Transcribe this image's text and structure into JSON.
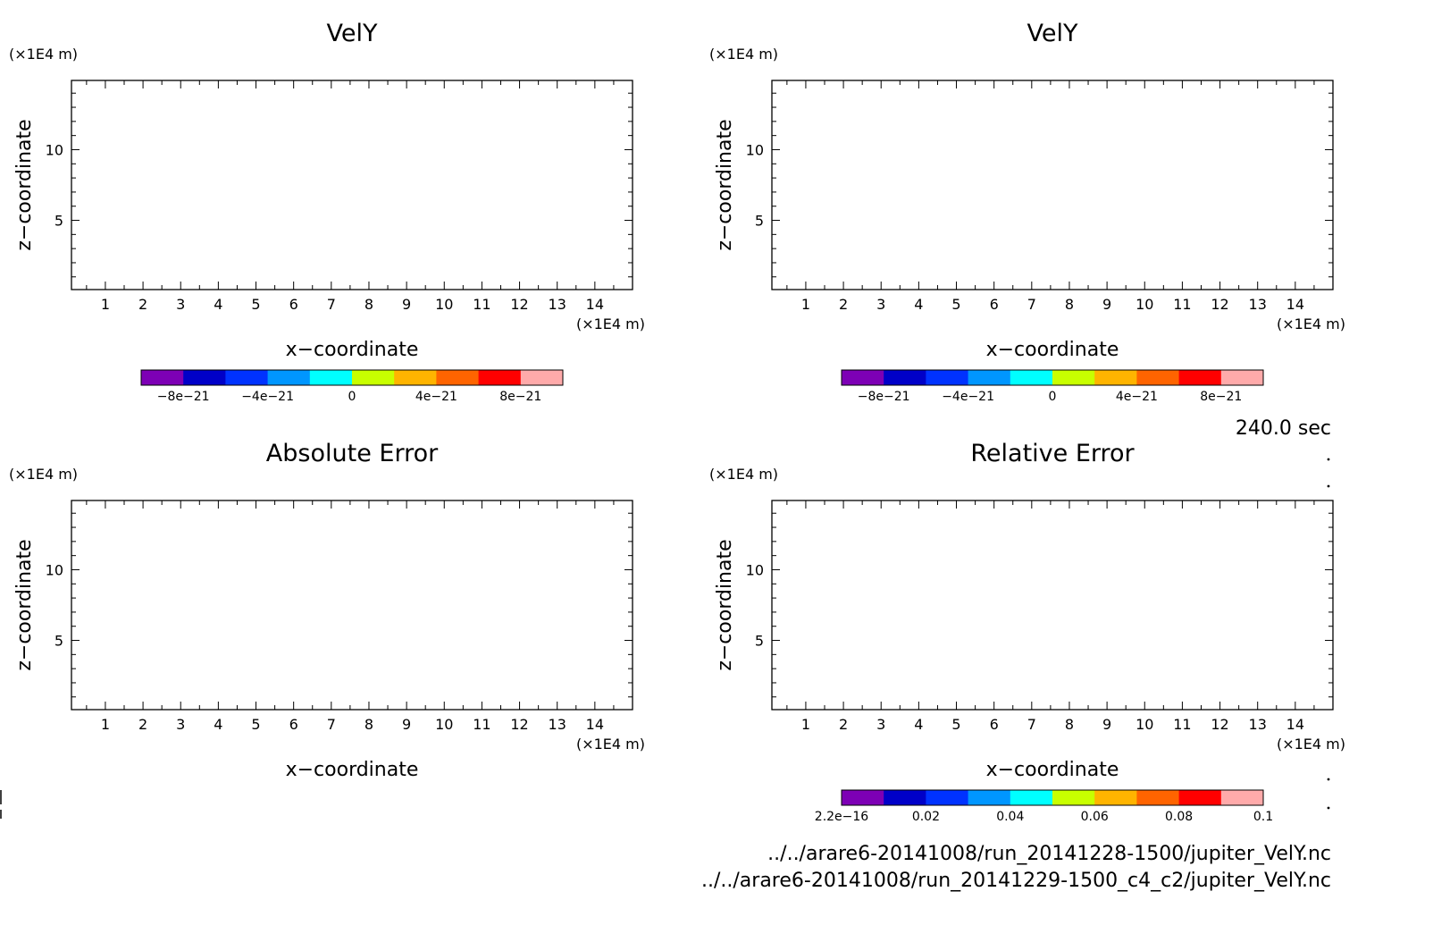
{
  "footer": {
    "time": "240.0 sec",
    "file1": "../../arare6-20141008/run_20141228-1500/jupiter_VelY.nc",
    "file2": "../../arare6-20141008/run_20141229-1500_c4_c2/jupiter_VelY.nc"
  },
  "colorbar_colors": [
    "#7d00b5",
    "#0000c8",
    "#0032ff",
    "#0096ff",
    "#00ffff",
    "#c8ff00",
    "#ffb400",
    "#ff6400",
    "#ff0000",
    "#ffaaaa"
  ],
  "chart_data": [
    {
      "type": "heatmap",
      "title": "VelY",
      "xlabel": "x−coordinate",
      "ylabel": "z−coordinate",
      "x_unit": "(×1E4 m)",
      "y_unit": "(×1E4 m)",
      "xlim": [
        0.1,
        15.0
      ],
      "ylim": [
        0.1,
        14.9
      ],
      "x_ticks": [
        "1",
        "2",
        "3",
        "4",
        "5",
        "6",
        "7",
        "8",
        "9",
        "10",
        "11",
        "12",
        "13",
        "14"
      ],
      "y_ticks": [
        "5",
        "10"
      ],
      "grid": false,
      "colorbar": [
        "−8e−21",
        "−4e−21",
        "0",
        "4e−21",
        "8e−21"
      ]
    },
    {
      "type": "heatmap",
      "title": "VelY",
      "xlabel": "x−coordinate",
      "ylabel": "z−coordinate",
      "x_unit": "(×1E4 m)",
      "y_unit": "(×1E4 m)",
      "xlim": [
        0.1,
        15.0
      ],
      "ylim": [
        0.1,
        14.9
      ],
      "x_ticks": [
        "1",
        "2",
        "3",
        "4",
        "5",
        "6",
        "7",
        "8",
        "9",
        "10",
        "11",
        "12",
        "13",
        "14"
      ],
      "y_ticks": [
        "5",
        "10"
      ],
      "grid": false,
      "colorbar": [
        "−8e−21",
        "−4e−21",
        "0",
        "4e−21",
        "8e−21"
      ]
    },
    {
      "type": "heatmap",
      "title": "Absolute Error",
      "xlabel": "x−coordinate",
      "ylabel": "z−coordinate",
      "x_unit": "(×1E4 m)",
      "y_unit": "(×1E4 m)",
      "xlim": [
        0.1,
        15.0
      ],
      "ylim": [
        0.1,
        14.9
      ],
      "x_ticks": [
        "1",
        "2",
        "3",
        "4",
        "5",
        "6",
        "7",
        "8",
        "9",
        "10",
        "11",
        "12",
        "13",
        "14"
      ],
      "y_ticks": [
        "5",
        "10"
      ],
      "grid": false,
      "colorbar": []
    },
    {
      "type": "heatmap",
      "title": "Relative Error",
      "xlabel": "x−coordinate",
      "ylabel": "z−coordinate",
      "x_unit": "(×1E4 m)",
      "y_unit": "(×1E4 m)",
      "xlim": [
        0.1,
        15.0
      ],
      "ylim": [
        0.1,
        14.9
      ],
      "x_ticks": [
        "1",
        "2",
        "3",
        "4",
        "5",
        "6",
        "7",
        "8",
        "9",
        "10",
        "11",
        "12",
        "13",
        "14"
      ],
      "y_ticks": [
        "5",
        "10"
      ],
      "grid": false,
      "colorbar": [
        "2.2e−16",
        "0.02",
        "0.04",
        "0.06",
        "0.08",
        "0.1"
      ]
    }
  ]
}
